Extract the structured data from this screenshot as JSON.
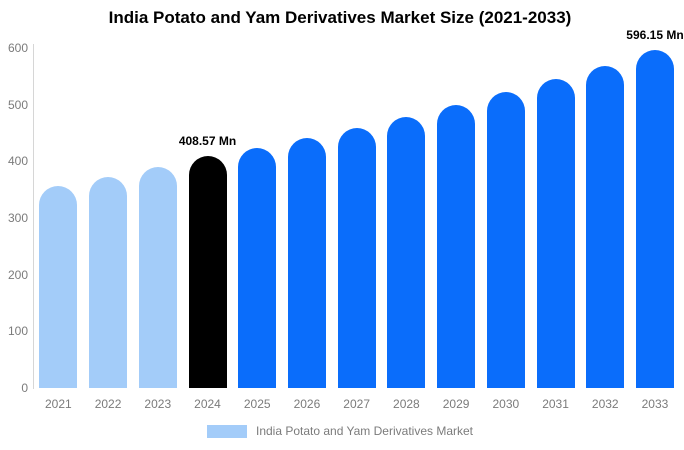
{
  "title": "India Potato and Yam Derivatives Market Size (2021-2033)",
  "colors": {
    "light_blue": "#A3CCF9",
    "blue": "#0A6DFB",
    "black": "#000000",
    "axis_text": "#7b7b7b",
    "axis_line": "#d6d6d6",
    "title_text": "#000000"
  },
  "chart_data": {
    "type": "bar",
    "title": "India Potato and Yam Derivatives Market Size (2021-2033)",
    "xlabel": "",
    "ylabel": "",
    "categories": [
      "2021",
      "2022",
      "2023",
      "2024",
      "2025",
      "2026",
      "2027",
      "2028",
      "2029",
      "2030",
      "2031",
      "2032",
      "2033"
    ],
    "values": [
      356,
      372,
      390,
      408.57,
      424,
      441,
      459,
      478,
      500,
      522,
      545,
      568,
      596.15
    ],
    "bar_colors": [
      "light_blue",
      "light_blue",
      "light_blue",
      "black",
      "blue",
      "blue",
      "blue",
      "blue",
      "blue",
      "blue",
      "blue",
      "blue",
      "blue"
    ],
    "ylim": [
      0,
      600
    ],
    "yticks": [
      0,
      100,
      200,
      300,
      400,
      500,
      600
    ],
    "grid": "off",
    "annotations": [
      {
        "category": "2024",
        "text": "408.57 Mn"
      },
      {
        "category": "2033",
        "text": "596.15 Mn"
      }
    ],
    "legend_position": "bottom",
    "legend": [
      {
        "label": "India Potato and Yam Derivatives Market",
        "color": "light_blue"
      }
    ]
  }
}
